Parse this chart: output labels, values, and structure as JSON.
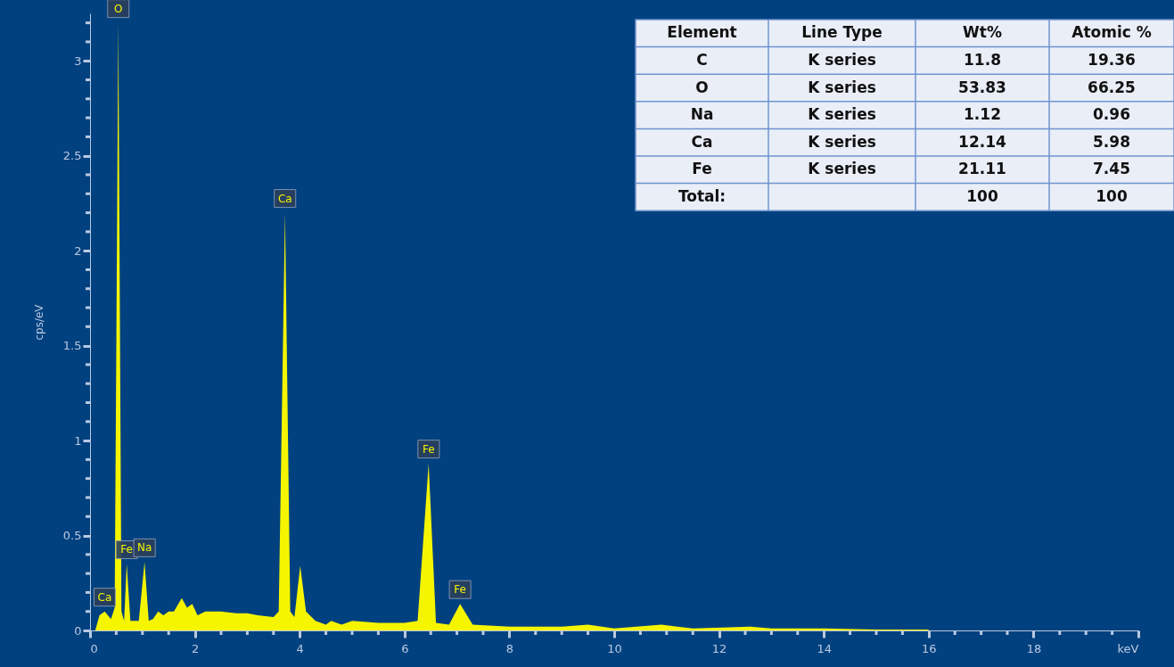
{
  "chart_data": {
    "type": "area",
    "ylabel": "cps/eV",
    "x": [
      0.1,
      0.18,
      0.28,
      0.4,
      0.47,
      0.54,
      0.6,
      0.65,
      0.7,
      0.77,
      0.85,
      0.93,
      1.04,
      1.12,
      1.2,
      1.3,
      1.4,
      1.5,
      1.6,
      1.75,
      1.85,
      1.95,
      2.05,
      2.2,
      2.5,
      2.8,
      3.0,
      3.2,
      3.5,
      3.6,
      3.72,
      3.82,
      3.9,
      4.01,
      4.12,
      4.3,
      4.5,
      4.6,
      4.8,
      5.0,
      5.5,
      6.0,
      6.25,
      6.46,
      6.6,
      6.85,
      7.06,
      7.3,
      8.0,
      9.0,
      9.5,
      10.0,
      10.9,
      11.5,
      12.6,
      13.0,
      14.0,
      15.0,
      16.0
    ],
    "series": [
      {
        "color": "#f5f500",
        "values": [
          0.0,
          0.08,
          0.1,
          0.06,
          0.12,
          3.2,
          0.1,
          0.05,
          0.35,
          0.05,
          0.05,
          0.05,
          0.36,
          0.05,
          0.06,
          0.1,
          0.08,
          0.1,
          0.1,
          0.17,
          0.12,
          0.14,
          0.08,
          0.1,
          0.1,
          0.09,
          0.09,
          0.08,
          0.07,
          0.1,
          2.2,
          0.1,
          0.07,
          0.34,
          0.1,
          0.05,
          0.03,
          0.05,
          0.03,
          0.05,
          0.04,
          0.04,
          0.05,
          0.88,
          0.04,
          0.03,
          0.14,
          0.03,
          0.02,
          0.02,
          0.03,
          0.01,
          0.03,
          0.01,
          0.02,
          0.01,
          0.01,
          0.005,
          0.005
        ]
      }
    ],
    "xlim": [
      0,
      20
    ],
    "xticks": [
      0,
      {
        "value": 0.5,
        "label": null
      },
      {
        "value": 1,
        "label": null
      },
      {
        "value": 1.5,
        "label": null
      },
      2,
      {
        "value": 2.5,
        "label": null
      },
      {
        "value": 3,
        "label": null
      },
      {
        "value": 3.5,
        "label": null
      },
      4,
      {
        "value": 4.5,
        "label": null
      },
      {
        "value": 5,
        "label": null
      },
      {
        "value": 5.5,
        "label": null
      },
      6,
      {
        "value": 6.5,
        "label": null
      },
      {
        "value": 7,
        "label": null
      },
      {
        "value": 7.5,
        "label": null
      },
      8,
      {
        "value": 8.5,
        "label": null
      },
      {
        "value": 9,
        "label": null
      },
      {
        "value": 9.5,
        "label": null
      },
      10,
      {
        "value": 10.5,
        "label": null
      },
      {
        "value": 11,
        "label": null
      },
      {
        "value": 11.5,
        "label": null
      },
      12,
      {
        "value": 12.5,
        "label": null
      },
      {
        "value": 13,
        "label": null
      },
      {
        "value": 13.5,
        "label": null
      },
      14,
      {
        "value": 14.5,
        "label": null
      },
      {
        "value": 15,
        "label": null
      },
      {
        "value": 15.5,
        "label": null
      },
      16,
      {
        "value": 16.5,
        "label": null
      },
      {
        "value": 17,
        "label": null
      },
      {
        "value": 17.5,
        "label": null
      },
      18,
      {
        "value": 18.5,
        "label": null
      },
      {
        "value": 19,
        "label": null
      },
      {
        "value": 19.5,
        "label": null
      },
      {
        "value": 20,
        "label": "keV"
      }
    ],
    "ylim": [
      0,
      3.25
    ],
    "yticks": [
      0,
      {
        "value": 0.1,
        "label": null
      },
      {
        "value": 0.2,
        "label": null
      },
      {
        "value": 0.3,
        "label": null
      },
      {
        "value": 0.4,
        "label": null
      },
      0.5,
      {
        "value": 0.6,
        "label": null
      },
      {
        "value": 0.7,
        "label": null
      },
      {
        "value": 0.8,
        "label": null
      },
      {
        "value": 0.9,
        "label": null
      },
      1,
      {
        "value": 1.1,
        "label": null
      },
      {
        "value": 1.2,
        "label": null
      },
      {
        "value": 1.3,
        "label": null
      },
      {
        "value": 1.4,
        "label": null
      },
      1.5,
      {
        "value": 1.6,
        "label": null
      },
      {
        "value": 1.7,
        "label": null
      },
      {
        "value": 1.8,
        "label": null
      },
      {
        "value": 1.9,
        "label": null
      },
      2,
      {
        "value": 2.1,
        "label": null
      },
      {
        "value": 2.2,
        "label": null
      },
      {
        "value": 2.3,
        "label": null
      },
      {
        "value": 2.4,
        "label": null
      },
      2.5,
      {
        "value": 2.6,
        "label": null
      },
      {
        "value": 2.7,
        "label": null
      },
      {
        "value": 2.8,
        "label": null
      },
      {
        "value": 2.9,
        "label": null
      },
      3,
      {
        "value": 3.1,
        "label": null
      },
      {
        "value": 3.2,
        "label": null
      }
    ],
    "grid": false,
    "annotations": [
      {
        "text": "O",
        "x": 0.54,
        "y": 3.2
      },
      {
        "text": "Ca",
        "x": 0.28,
        "y": 0.1
      },
      {
        "text": "Fe",
        "x": 0.7,
        "y": 0.35
      },
      {
        "text": "Na",
        "x": 1.04,
        "y": 0.36
      },
      {
        "text": "Ca",
        "x": 3.72,
        "y": 2.2
      },
      {
        "text": "Fe",
        "x": 6.46,
        "y": 0.88
      },
      {
        "text": "Fe",
        "x": 7.06,
        "y": 0.14
      },
      "Element",
      "Line Type",
      "Wt%",
      "Atomic %",
      "C",
      "K series",
      "11.8",
      "19.36",
      "O",
      "K series",
      "53.83",
      "66.25",
      "Na",
      "K series",
      "1.12",
      "0.96",
      "Ca",
      "K series",
      "12.14",
      "5.98",
      "Fe",
      "K series",
      "21.11",
      "7.45",
      "Total:",
      null,
      "100",
      "100"
    ]
  }
}
